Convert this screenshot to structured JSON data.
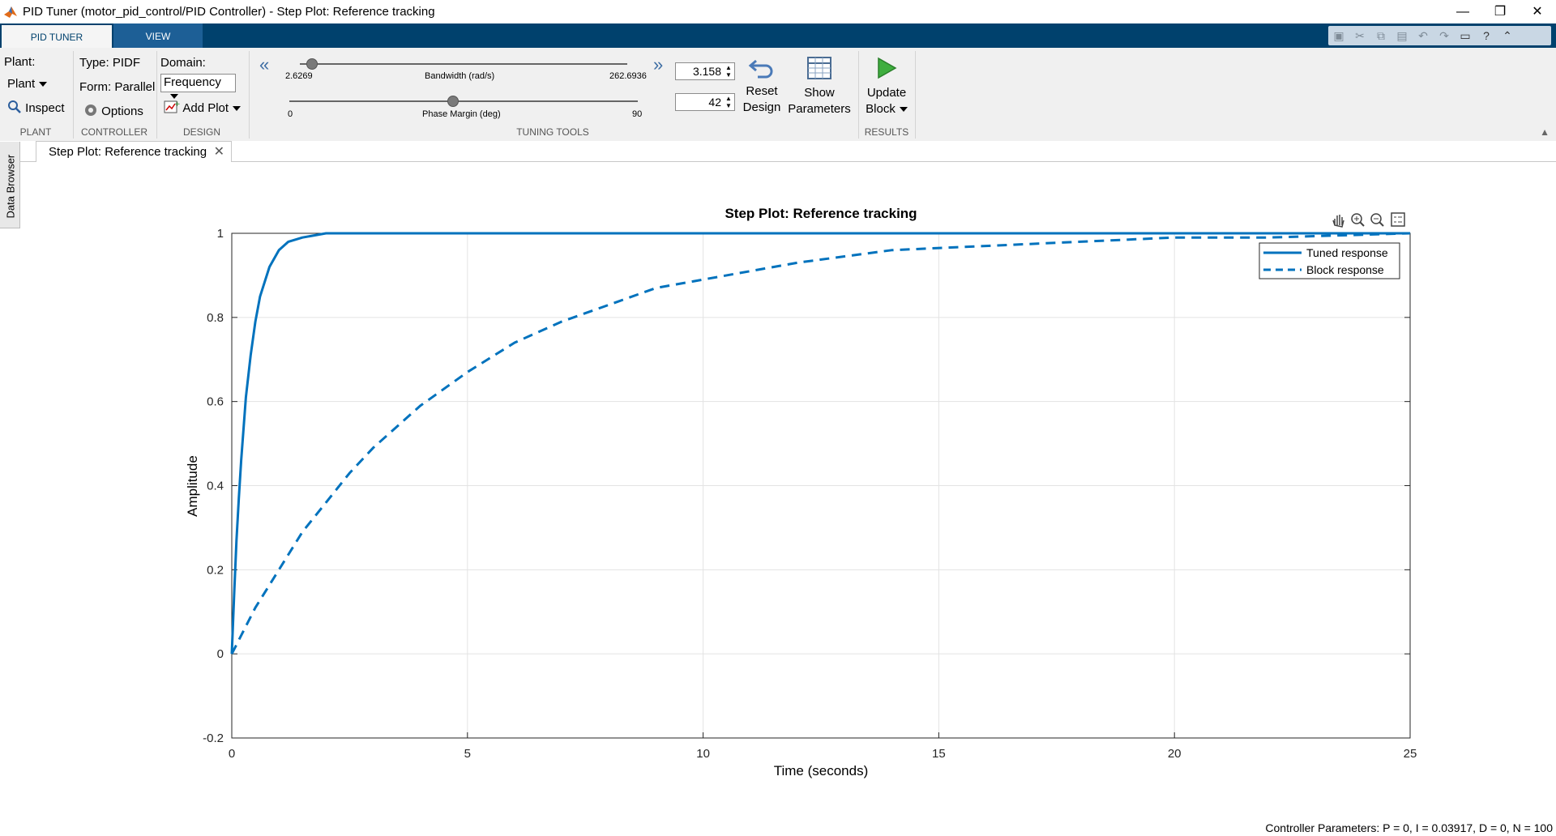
{
  "window": {
    "title": "PID Tuner (motor_pid_control/PID Controller) - Step Plot: Reference tracking",
    "minimize_glyph": "—",
    "restore_glyph": "❐",
    "close_glyph": "✕"
  },
  "ribbon_tabs": [
    {
      "label": "PID TUNER",
      "active": true
    },
    {
      "label": "VIEW",
      "active": false
    }
  ],
  "quick_access_icons": [
    "save-icon",
    "cut-icon",
    "copy-icon",
    "paste-icon",
    "undo-icon",
    "redo-icon",
    "dock-icon",
    "help-icon",
    "expand-icon"
  ],
  "quick_access_glyphs": [
    "▣",
    "✂",
    "⧉",
    "▤",
    "↶",
    "↷",
    "▭",
    "?",
    "⌃"
  ],
  "plant": {
    "label": "Plant:",
    "dropdown": "Plant",
    "inspect": "Inspect",
    "section": "PLANT"
  },
  "controller": {
    "type": "Type: PIDF",
    "form": "Form: Parallel",
    "options": "Options",
    "section": "CONTROLLER"
  },
  "design": {
    "domain_label": "Domain:",
    "domain_value": "Frequency",
    "add_plot": "Add Plot",
    "section": "DESIGN"
  },
  "tuning": {
    "bandwidth": {
      "label": "Bandwidth (rad/s)",
      "min": "2.6269",
      "max": "262.6936",
      "value": "3.158"
    },
    "phase_margin": {
      "label": "Phase Margin (deg)",
      "min": "0",
      "max": "90",
      "value": "42"
    },
    "collapse_glyph": "«",
    "expand_glyph": "»",
    "section": "TUNING TOOLS"
  },
  "buttons": {
    "reset": [
      "Reset",
      "Design"
    ],
    "show": [
      "Show",
      "Parameters"
    ],
    "update": [
      "Update",
      "Block"
    ],
    "results_section": "RESULTS"
  },
  "side_tab": "Data Browser",
  "document_tab": {
    "label": "Step Plot: Reference tracking",
    "close": "✕"
  },
  "plot_toolbar": [
    "pan-icon",
    "zoom-in-icon",
    "zoom-out-icon",
    "legend-icon"
  ],
  "chart_data": {
    "type": "line",
    "title": "Step Plot: Reference tracking",
    "xlabel": "Time (seconds)",
    "ylabel": "Amplitude",
    "xlim": [
      0,
      25
    ],
    "ylim": [
      -0.2,
      1
    ],
    "xticks": [
      "0",
      "5",
      "10",
      "15",
      "20",
      "25"
    ],
    "yticks": [
      "-0.2",
      "0",
      "0.2",
      "0.4",
      "0.6",
      "0.8",
      "1"
    ],
    "grid": true,
    "legend_position": "top-right",
    "series": [
      {
        "name": "Tuned response",
        "style": "solid",
        "color": "#0072bd",
        "x": [
          0,
          0.05,
          0.1,
          0.15,
          0.2,
          0.3,
          0.4,
          0.5,
          0.6,
          0.8,
          1.0,
          1.2,
          1.5,
          2.0,
          3,
          5,
          10,
          15,
          20,
          25
        ],
        "y": [
          0,
          0.14,
          0.27,
          0.37,
          0.46,
          0.61,
          0.71,
          0.79,
          0.85,
          0.92,
          0.96,
          0.98,
          0.99,
          1.0,
          1.0,
          1.0,
          1.0,
          1.0,
          1.0,
          1.0
        ]
      },
      {
        "name": "Block response",
        "style": "dashed",
        "color": "#0072bd",
        "x": [
          0,
          0.5,
          1,
          1.5,
          2,
          2.5,
          3,
          4,
          5,
          6,
          7,
          8,
          9,
          10,
          12,
          14,
          16,
          18,
          20,
          22,
          25
        ],
        "y": [
          0,
          0.11,
          0.2,
          0.29,
          0.36,
          0.43,
          0.49,
          0.59,
          0.67,
          0.74,
          0.79,
          0.83,
          0.87,
          0.89,
          0.93,
          0.96,
          0.97,
          0.98,
          0.99,
          0.99,
          1.0
        ]
      }
    ]
  },
  "status": "Controller Parameters: P =  0, I = 0.03917, D =  0, N = 100"
}
